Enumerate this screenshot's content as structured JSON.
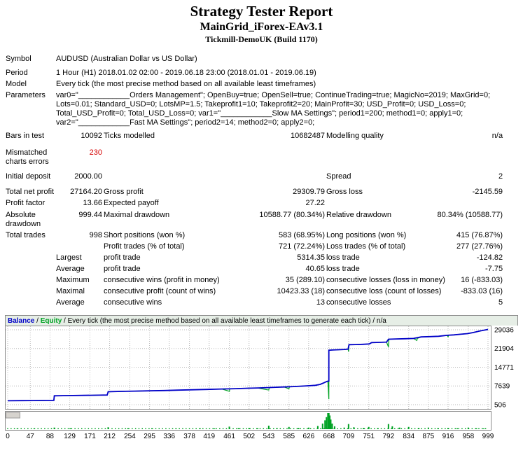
{
  "header": {
    "title": "Strategy Tester Report",
    "subtitle": "MainGrid_iForex-EAv3.1",
    "server_build": "Tickmill-DemoUK (Build 1170)"
  },
  "report": {
    "rows": [
      {
        "cells": [
          {
            "t": "Symbol"
          },
          {
            "t": "AUDUSD (Australian Dollar vs US Dollar)",
            "span": 5
          }
        ]
      },
      {
        "cells": [
          {
            "t": "Period"
          },
          {
            "t": "1 Hour (H1) 2018.01.02 02:00 - 2019.06.18 23:00 (2018.01.01 - 2019.06.19)",
            "span": 5
          }
        ]
      },
      {
        "cells": [
          {
            "t": "Model"
          },
          {
            "t": "Every tick (the most precise method based on all available least timeframes)",
            "span": 5
          }
        ]
      },
      {
        "cells": [
          {
            "t": "Parameters"
          },
          {
            "t": "var0=\"____________Orders Management\"; OpenBuy=true; OpenSell=true; ContinueTrading=true; MagicNo=2019; MaxGrid=0; Lots=0.01; Standard_USD=0; LotsMP=1.5; Takeprofit1=10; Takeprofit2=20; MainProfit=30; USD_Profit=0; USD_Loss=0; Total_USD_Profit=0; Total_USD_Loss=0; var1=\"____________Slow MA Settings\"; period1=200; method1=0; apply1=0; var2=\"____________Fast MA Settings\"; period2=14; method2=0; apply2=0;",
            "span": 5
          }
        ]
      },
      {
        "cells": [
          {
            "t": "Bars in test"
          },
          {
            "t": "10092",
            "r": 1
          },
          {
            "t": "Ticks modelled"
          },
          {
            "t": "10682487",
            "r": 1
          },
          {
            "t": "Modelling quality"
          },
          {
            "t": "n/a",
            "r": 1
          }
        ]
      },
      {
        "cells": [
          {
            "t": "Mismatched charts errors"
          },
          {
            "t": "230",
            "r": 1,
            "red": 1
          },
          {
            "t": ""
          },
          {
            "t": ""
          },
          {
            "t": ""
          },
          {
            "t": ""
          }
        ]
      },
      {
        "cells": [
          {
            "t": "Initial deposit"
          },
          {
            "t": "2000.00",
            "r": 1
          },
          {
            "t": ""
          },
          {
            "t": ""
          },
          {
            "t": "Spread"
          },
          {
            "t": "2",
            "r": 1
          }
        ]
      },
      {
        "cells": [
          {
            "t": "Total net profit"
          },
          {
            "t": "27164.20",
            "r": 1
          },
          {
            "t": "Gross profit"
          },
          {
            "t": "29309.79",
            "r": 1
          },
          {
            "t": "Gross loss"
          },
          {
            "t": "-2145.59",
            "r": 1
          }
        ]
      },
      {
        "cells": [
          {
            "t": "Profit factor"
          },
          {
            "t": "13.66",
            "r": 1
          },
          {
            "t": "Expected payoff"
          },
          {
            "t": "27.22",
            "r": 1
          },
          {
            "t": ""
          },
          {
            "t": ""
          }
        ]
      },
      {
        "cells": [
          {
            "t": "Absolute drawdown"
          },
          {
            "t": "999.44",
            "r": 1
          },
          {
            "t": "Maximal drawdown"
          },
          {
            "t": "10588.77 (80.34%)",
            "r": 1
          },
          {
            "t": "Relative drawdown"
          },
          {
            "t": "80.34% (10588.77)",
            "r": 1
          }
        ]
      },
      {
        "cells": [
          {
            "t": "Total trades"
          },
          {
            "t": "998",
            "r": 1
          },
          {
            "t": "Short positions (won %)"
          },
          {
            "t": "583 (68.95%)",
            "r": 1
          },
          {
            "t": "Long positions (won %)"
          },
          {
            "t": "415 (76.87%)",
            "r": 1
          }
        ]
      },
      {
        "cells": [
          {
            "t": ""
          },
          {
            "t": ""
          },
          {
            "t": "Profit trades (% of total)"
          },
          {
            "t": "721 (72.24%)",
            "r": 1
          },
          {
            "t": "Loss trades (% of total)"
          },
          {
            "t": "277 (27.76%)",
            "r": 1
          }
        ]
      },
      {
        "cells": [
          {
            "t": ""
          },
          {
            "t": "Largest"
          },
          {
            "t": "profit trade"
          },
          {
            "t": "5314.35",
            "r": 1
          },
          {
            "t": "loss trade"
          },
          {
            "t": "-124.82",
            "r": 1
          }
        ]
      },
      {
        "cells": [
          {
            "t": ""
          },
          {
            "t": "Average"
          },
          {
            "t": "profit trade"
          },
          {
            "t": "40.65",
            "r": 1
          },
          {
            "t": "loss trade"
          },
          {
            "t": "-7.75",
            "r": 1
          }
        ]
      },
      {
        "cells": [
          {
            "t": ""
          },
          {
            "t": "Maximum"
          },
          {
            "t": "consecutive wins (profit in money)"
          },
          {
            "t": "35 (289.10)",
            "r": 1
          },
          {
            "t": "consecutive losses (loss in money)"
          },
          {
            "t": "16 (-833.03)",
            "r": 1
          }
        ]
      },
      {
        "cells": [
          {
            "t": ""
          },
          {
            "t": "Maximal"
          },
          {
            "t": "consecutive profit (count of wins)"
          },
          {
            "t": "10423.33 (18)",
            "r": 1
          },
          {
            "t": "consecutive loss (count of losses)"
          },
          {
            "t": "-833.03 (16)",
            "r": 1
          }
        ]
      },
      {
        "cells": [
          {
            "t": ""
          },
          {
            "t": "Average"
          },
          {
            "t": "consecutive wins"
          },
          {
            "t": "13",
            "r": 1
          },
          {
            "t": "consecutive losses"
          },
          {
            "t": "5",
            "r": 1
          }
        ]
      }
    ]
  },
  "chart_data": {
    "type": "line",
    "legend": {
      "balance": "Balance",
      "sep": " / ",
      "equity": "Equity",
      "rest": " / Every tick (the most precise method based on all available least timeframes to generate each tick) / n/a"
    },
    "xlim": [
      0,
      999
    ],
    "ylim": [
      506,
      29036
    ],
    "x_ticks": [
      0,
      47,
      88,
      129,
      171,
      212,
      254,
      295,
      336,
      378,
      419,
      461,
      502,
      543,
      585,
      626,
      668,
      709,
      751,
      792,
      834,
      875,
      916,
      958,
      999
    ],
    "y_ticks": [
      29036,
      21904,
      14771,
      7639,
      506
    ],
    "grid": "dotted",
    "series": [
      {
        "name": "Balance",
        "color": "#0000c8",
        "points": [
          [
            0,
            2000
          ],
          [
            28,
            2040
          ],
          [
            55,
            2090
          ],
          [
            80,
            2130
          ],
          [
            96,
            2160
          ],
          [
            97,
            3900
          ],
          [
            125,
            3970
          ],
          [
            158,
            4050
          ],
          [
            190,
            4130
          ],
          [
            207,
            4180
          ],
          [
            209,
            5450
          ],
          [
            235,
            5560
          ],
          [
            265,
            5670
          ],
          [
            295,
            5790
          ],
          [
            325,
            5900
          ],
          [
            355,
            6040
          ],
          [
            385,
            6180
          ],
          [
            415,
            6330
          ],
          [
            445,
            6470
          ],
          [
            460,
            6540
          ],
          [
            475,
            6620
          ],
          [
            500,
            6760
          ],
          [
            520,
            6890
          ],
          [
            540,
            7010
          ],
          [
            558,
            7140
          ],
          [
            575,
            7260
          ],
          [
            595,
            7420
          ],
          [
            612,
            7560
          ],
          [
            628,
            7720
          ],
          [
            640,
            7900
          ],
          [
            650,
            8250
          ],
          [
            658,
            8850
          ],
          [
            664,
            9380
          ],
          [
            668,
            9520
          ],
          [
            668,
            21250
          ],
          [
            676,
            21340
          ],
          [
            688,
            21440
          ],
          [
            700,
            21550
          ],
          [
            708,
            21640
          ],
          [
            710,
            23350
          ],
          [
            724,
            23420
          ],
          [
            738,
            23490
          ],
          [
            752,
            23620
          ],
          [
            757,
            24150
          ],
          [
            772,
            24240
          ],
          [
            788,
            24330
          ],
          [
            792,
            25430
          ],
          [
            808,
            25530
          ],
          [
            826,
            25630
          ],
          [
            844,
            25740
          ],
          [
            860,
            26320
          ],
          [
            878,
            26430
          ],
          [
            896,
            26560
          ],
          [
            914,
            26930
          ],
          [
            928,
            27080
          ],
          [
            942,
            27320
          ],
          [
            956,
            27580
          ],
          [
            968,
            27960
          ],
          [
            982,
            28560
          ],
          [
            999,
            29164
          ]
        ]
      },
      {
        "name": "Equity",
        "color": "#00a223",
        "points": [
          [
            0,
            2000
          ],
          [
            28,
            2040
          ],
          [
            55,
            2090
          ],
          [
            80,
            2130
          ],
          [
            96,
            2160
          ],
          [
            97,
            3900
          ],
          [
            125,
            3970
          ],
          [
            158,
            4050
          ],
          [
            190,
            4130
          ],
          [
            207,
            4180
          ],
          [
            209,
            5450
          ],
          [
            235,
            5560
          ],
          [
            265,
            5670
          ],
          [
            295,
            5790
          ],
          [
            325,
            5900
          ],
          [
            355,
            6040
          ],
          [
            385,
            6180
          ],
          [
            415,
            6330
          ],
          [
            445,
            6470
          ],
          [
            461,
            5620
          ],
          [
            462,
            6550
          ],
          [
            475,
            6620
          ],
          [
            500,
            6760
          ],
          [
            520,
            6890
          ],
          [
            543,
            6080
          ],
          [
            544,
            7030
          ],
          [
            558,
            7140
          ],
          [
            575,
            7260
          ],
          [
            585,
            6560
          ],
          [
            586,
            7340
          ],
          [
            595,
            7420
          ],
          [
            612,
            7560
          ],
          [
            628,
            7720
          ],
          [
            640,
            7900
          ],
          [
            650,
            8250
          ],
          [
            658,
            8850
          ],
          [
            664,
            9380
          ],
          [
            666,
            9460
          ],
          [
            668,
            2620
          ],
          [
            668,
            21250
          ],
          [
            676,
            21340
          ],
          [
            688,
            21440
          ],
          [
            700,
            21550
          ],
          [
            708,
            21640
          ],
          [
            709,
            20750
          ],
          [
            710,
            23350
          ],
          [
            724,
            23420
          ],
          [
            738,
            23490
          ],
          [
            752,
            23620
          ],
          [
            757,
            24150
          ],
          [
            772,
            24240
          ],
          [
            788,
            24330
          ],
          [
            792,
            22480
          ],
          [
            793,
            25430
          ],
          [
            808,
            25530
          ],
          [
            826,
            25630
          ],
          [
            844,
            25740
          ],
          [
            851,
            24950
          ],
          [
            852,
            25760
          ],
          [
            860,
            26320
          ],
          [
            878,
            26430
          ],
          [
            896,
            26560
          ],
          [
            914,
            26930
          ],
          [
            916,
            26380
          ],
          [
            917,
            26950
          ],
          [
            928,
            27080
          ],
          [
            942,
            27320
          ],
          [
            956,
            27580
          ],
          [
            968,
            27960
          ],
          [
            982,
            28560
          ],
          [
            999,
            29164
          ]
        ]
      }
    ],
    "lots": {
      "color": "#00a223",
      "bars": [
        [
          20,
          0.05
        ],
        [
          55,
          0.05
        ],
        [
          97,
          0.1
        ],
        [
          130,
          0.06
        ],
        [
          209,
          0.12
        ],
        [
          250,
          0.06
        ],
        [
          300,
          0.06
        ],
        [
          350,
          0.05
        ],
        [
          400,
          0.06
        ],
        [
          430,
          0.05
        ],
        [
          461,
          0.16
        ],
        [
          480,
          0.07
        ],
        [
          502,
          0.08
        ],
        [
          520,
          0.06
        ],
        [
          543,
          0.22
        ],
        [
          560,
          0.08
        ],
        [
          585,
          0.14
        ],
        [
          605,
          0.08
        ],
        [
          626,
          0.1
        ],
        [
          645,
          0.2
        ],
        [
          655,
          0.35
        ],
        [
          660,
          0.55
        ],
        [
          663,
          0.75
        ],
        [
          666,
          1.0
        ],
        [
          668,
          1.0
        ],
        [
          670,
          0.85
        ],
        [
          672,
          0.6
        ],
        [
          675,
          0.35
        ],
        [
          680,
          0.18
        ],
        [
          700,
          0.1
        ],
        [
          709,
          0.32
        ],
        [
          720,
          0.12
        ],
        [
          740,
          0.08
        ],
        [
          751,
          0.14
        ],
        [
          770,
          0.08
        ],
        [
          792,
          0.32
        ],
        [
          800,
          0.18
        ],
        [
          815,
          0.1
        ],
        [
          834,
          0.14
        ],
        [
          855,
          0.08
        ],
        [
          875,
          0.1
        ],
        [
          895,
          0.07
        ],
        [
          916,
          0.08
        ],
        [
          935,
          0.06
        ],
        [
          958,
          0.1
        ],
        [
          975,
          0.06
        ],
        [
          990,
          0.05
        ]
      ]
    },
    "colors": {
      "grid": "#b8b8b8",
      "frame": "#8a8a8a",
      "background": "#ffffff",
      "legend_bg": "#e6eee6"
    }
  }
}
